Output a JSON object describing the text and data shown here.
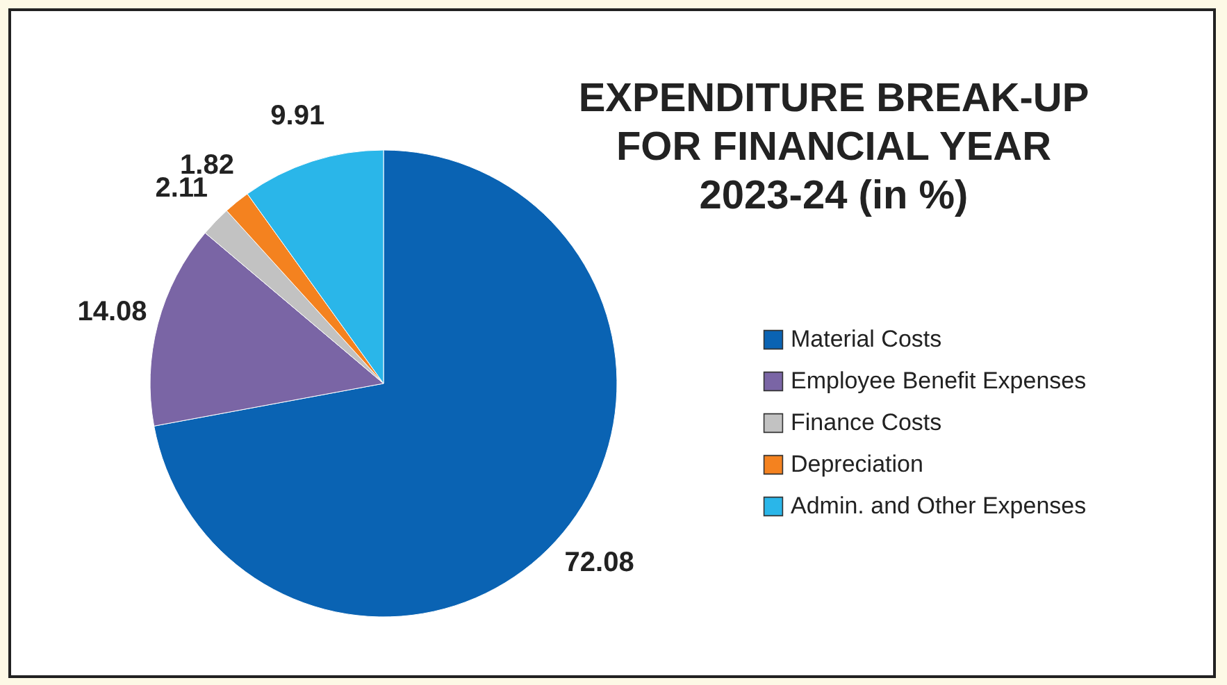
{
  "chart_data": {
    "type": "pie",
    "title": "EXPENDITURE BREAK-UP FOR FINANCIAL YEAR 2023-24 (in %)",
    "categories": [
      "Material Costs",
      "Employee Benefit Expenses",
      "Finance Costs",
      "Depreciation",
      "Admin. and Other Expenses"
    ],
    "values": [
      72.08,
      14.08,
      2.11,
      1.82,
      9.91
    ],
    "colors": [
      "#0a63b3",
      "#7a65a5",
      "#c2c2c2",
      "#f4821f",
      "#2ab6e9"
    ],
    "data_labels": true,
    "legend": "right"
  }
}
